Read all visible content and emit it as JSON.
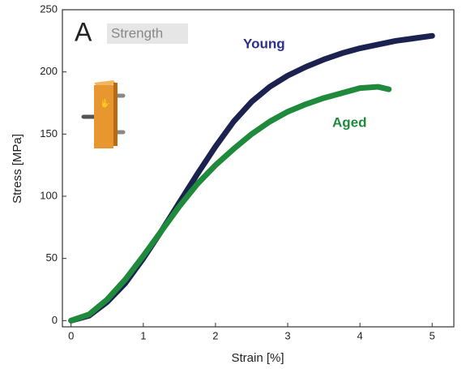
{
  "chart_data": {
    "type": "line",
    "panel_label": "A",
    "annotation": "Strength",
    "xlabel": "Strain [%]",
    "ylabel": "Stress [MPa]",
    "xlim": [
      -0.12,
      5.3
    ],
    "ylim": [
      -5,
      250
    ],
    "xticks": [
      0,
      1,
      2,
      3,
      4,
      5
    ],
    "yticks": [
      0,
      50,
      100,
      150,
      200,
      250
    ],
    "series": [
      {
        "name": "Young",
        "color": "#1c2250",
        "label_color": "#2e2f8c",
        "x": [
          0,
          0.25,
          0.5,
          0.75,
          1,
          1.25,
          1.5,
          1.75,
          2,
          2.25,
          2.5,
          2.75,
          3,
          3.25,
          3.5,
          3.75,
          4,
          4.25,
          4.5,
          4.75,
          5
        ],
        "values": [
          0,
          4,
          15,
          30,
          50,
          72,
          95,
          118,
          140,
          160,
          176,
          188,
          197,
          204,
          210,
          215,
          219,
          222,
          225,
          227,
          229
        ]
      },
      {
        "name": "Aged",
        "color": "#1f8a3c",
        "label_color": "#1f8a3c",
        "x": [
          0,
          0.25,
          0.5,
          0.75,
          1,
          1.25,
          1.5,
          1.75,
          2,
          2.25,
          2.5,
          2.75,
          3,
          3.25,
          3.5,
          3.75,
          4,
          4.25,
          4.4
        ],
        "values": [
          0,
          5,
          17,
          33,
          52,
          72,
          92,
          110,
          125,
          138,
          150,
          160,
          168,
          174,
          179,
          183,
          187,
          188,
          186
        ]
      }
    ]
  }
}
